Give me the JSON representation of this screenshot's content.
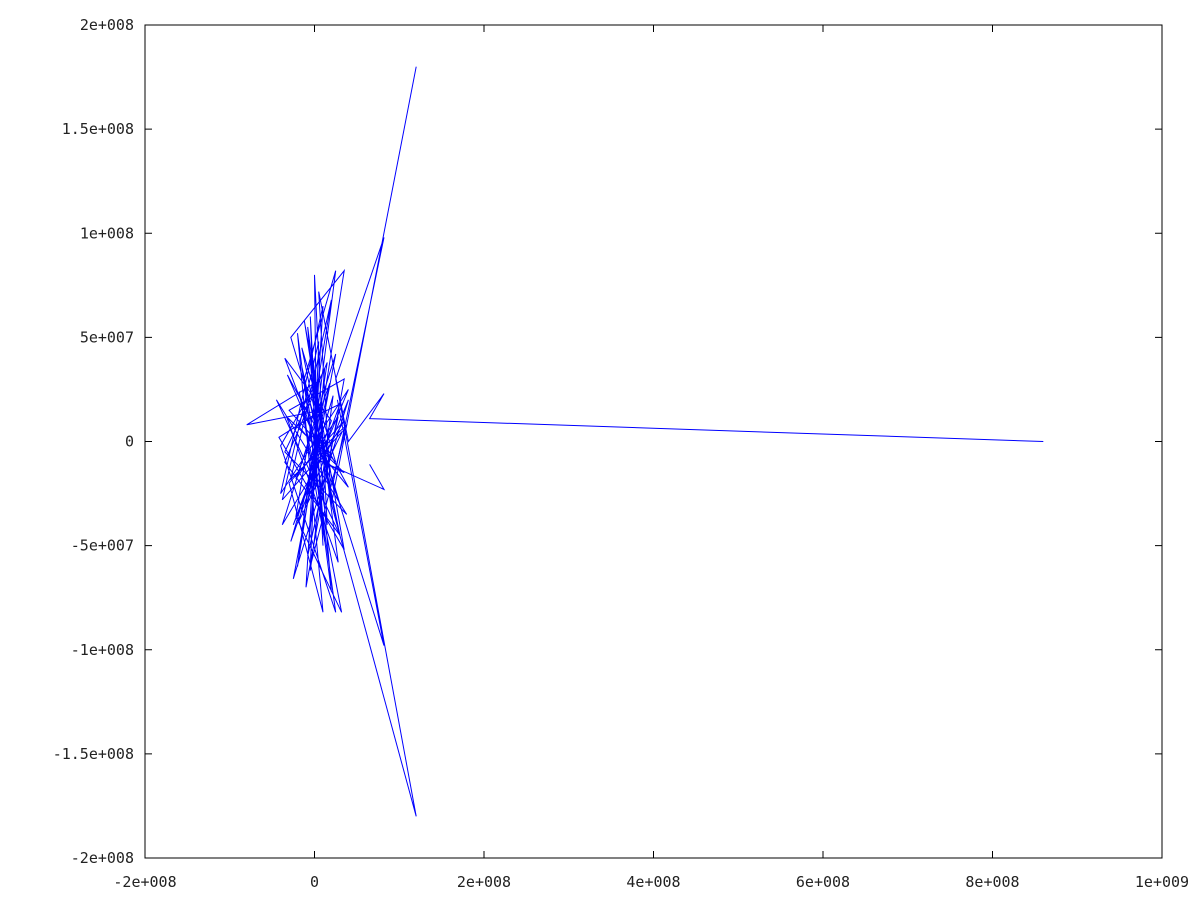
{
  "chart_data": {
    "type": "line",
    "title": "",
    "xlabel": "",
    "ylabel": "",
    "xlim": [
      -200000000,
      1000000000
    ],
    "ylim": [
      -200000000,
      200000000
    ],
    "x_ticks": [
      -200000000,
      0,
      200000000,
      400000000,
      600000000,
      800000000,
      1000000000
    ],
    "x_tick_labels": [
      "-2e+008",
      "0",
      "2e+008",
      "4e+008",
      "6e+008",
      "8e+008",
      "1e+009"
    ],
    "y_ticks": [
      -200000000,
      -150000000,
      -100000000,
      -50000000,
      0,
      50000000,
      100000000,
      150000000,
      200000000
    ],
    "y_tick_labels": [
      "-2e+008",
      "-1.5e+008",
      "-1e+008",
      "-5e+007",
      "0",
      "5e+007",
      "1e+008",
      "1.5e+008",
      "2e+008"
    ],
    "grid": false,
    "legend": "none",
    "series": [
      {
        "color": "#0000ff",
        "x": [
          860000000,
          65000000,
          82000000,
          40000000,
          5000000,
          20000000,
          -2000000,
          10000000,
          -5000000,
          3000000,
          0,
          15000000,
          -12000000,
          25000000,
          -20000000,
          35000000,
          -28000000,
          30000000,
          -35000000,
          20000000,
          -25000000,
          40000000,
          -40000000,
          10000000,
          -10000000,
          35000000,
          -30000000,
          25000000,
          -15000000,
          30000000,
          -45000000,
          38000000,
          -35000000,
          12000000,
          -8000000,
          28000000,
          -22000000,
          18000000,
          -18000000,
          33000000,
          -38000000,
          5000000,
          -5000000,
          22000000,
          -28000000,
          30000000,
          -20000000,
          40000000,
          -32000000,
          15000000,
          -12000000,
          35000000,
          -42000000,
          8000000,
          -80000000,
          0,
          20000000,
          -20000000,
          10000000,
          -30000000,
          35000000,
          -38000000,
          25000000,
          -25000000,
          40000000,
          -10000000,
          15000000,
          -35000000,
          30000000,
          -15000000,
          25000000,
          -40000000,
          5000000,
          -5000000,
          38000000,
          -28000000,
          20000000,
          -22000000,
          32000000,
          -18000000,
          12000000,
          -8000000,
          28000000,
          -33000000,
          35000000,
          0,
          82000000,
          65000000
        ],
        "y": [
          0,
          11000000,
          23000000,
          0,
          72000000,
          -30000000,
          40000000,
          -50000000,
          60000000,
          -20000000,
          80000000,
          -40000000,
          30000000,
          82000000,
          -60000000,
          82000000,
          50000000,
          -30000000,
          40000000,
          10000000,
          -40000000,
          25000000,
          -25000000,
          65000000,
          -70000000,
          30000000,
          15000000,
          -10000000,
          45000000,
          -45000000,
          20000000,
          -35000000,
          -5000000,
          35000000,
          -55000000,
          12000000,
          -18000000,
          28000000,
          -38000000,
          5000000,
          -28000000,
          48000000,
          -62000000,
          22000000,
          -48000000,
          18000000,
          8000000,
          -22000000,
          32000000,
          -12000000,
          58000000,
          -52000000,
          2000000,
          15000000,
          8000000,
          28000000,
          -72000000,
          52000000,
          -82000000,
          -20000000,
          10000000,
          -40000000,
          42000000,
          -66000000,
          20000000,
          -30000000,
          38000000,
          -10000000,
          -45000000,
          36000000,
          -82000000,
          -2000000,
          30000000,
          -60000000,
          8000000,
          -18000000,
          68000000,
          -36000000,
          -82000000,
          24000000,
          -48000000,
          55000000,
          -58000000,
          12000000,
          -15000000,
          -8000000,
          -23000000,
          -11000000
        ]
      },
      {
        "color": "#0000ff",
        "x": [
          120000000,
          20000000,
          120000000,
          25000000,
          82000000,
          22000000,
          82000000,
          27000000
        ],
        "y": [
          180000000,
          -30000000,
          -180000000,
          30000000,
          98000000,
          -20000000,
          -98000000,
          20000000
        ]
      }
    ]
  }
}
